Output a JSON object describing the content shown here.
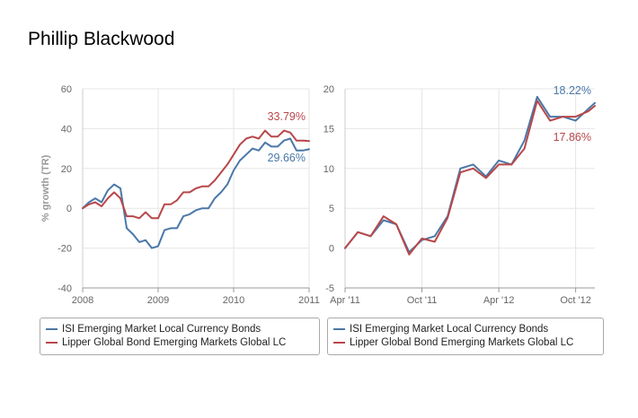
{
  "title": "Phillip Blackwood",
  "colors": {
    "blue": "#4a78a8",
    "red": "#b8474a",
    "grid": "#e6e6e6",
    "axis": "#999999"
  },
  "chart_data": [
    {
      "type": "line",
      "ylabel": "% growth (TR)",
      "x_ticks": [
        "2008",
        "2009",
        "2010",
        "2011"
      ],
      "y_ticks": [
        "60",
        "40",
        "20",
        "0",
        "-20",
        "-40"
      ],
      "x_range": [
        2008,
        2011
      ],
      "ylim": [
        -40,
        60
      ],
      "grid": true,
      "series": [
        {
          "name": "ISI Emerging Market Local Currency Bonds",
          "color": "#4a78a8",
          "end_label": "29.66%",
          "x": [
            2008.0,
            2008.083,
            2008.167,
            2008.25,
            2008.333,
            2008.417,
            2008.5,
            2008.583,
            2008.667,
            2008.75,
            2008.833,
            2008.917,
            2009.0,
            2009.083,
            2009.167,
            2009.25,
            2009.333,
            2009.417,
            2009.5,
            2009.583,
            2009.667,
            2009.75,
            2009.833,
            2009.917,
            2010.0,
            2010.083,
            2010.167,
            2010.25,
            2010.333,
            2010.417,
            2010.5,
            2010.583,
            2010.667,
            2010.75,
            2010.833,
            2010.917,
            2011.0
          ],
          "values": [
            0,
            3,
            5,
            3,
            9,
            12,
            10,
            -10,
            -13,
            -17,
            -16,
            -20,
            -19,
            -11,
            -10,
            -10,
            -4,
            -3,
            -1,
            0,
            0,
            5,
            8,
            12,
            19,
            24,
            27,
            30,
            29,
            33,
            31,
            31,
            34,
            35,
            29,
            29,
            29.66
          ]
        },
        {
          "name": "Lipper Global Bond Emerging Markets Global LC",
          "color": "#b8474a",
          "end_label": "33.79%",
          "x": [
            2008.0,
            2008.083,
            2008.167,
            2008.25,
            2008.333,
            2008.417,
            2008.5,
            2008.583,
            2008.667,
            2008.75,
            2008.833,
            2008.917,
            2009.0,
            2009.083,
            2009.167,
            2009.25,
            2009.333,
            2009.417,
            2009.5,
            2009.583,
            2009.667,
            2009.75,
            2009.833,
            2009.917,
            2010.0,
            2010.083,
            2010.167,
            2010.25,
            2010.333,
            2010.417,
            2010.5,
            2010.583,
            2010.667,
            2010.75,
            2010.833,
            2010.917,
            2011.0
          ],
          "values": [
            0,
            2,
            3,
            1,
            5,
            8,
            5,
            -4,
            -4,
            -5,
            -2,
            -5,
            -5,
            2,
            2,
            4,
            8,
            8,
            10,
            11,
            11,
            14,
            18,
            22,
            27,
            32,
            35,
            36,
            35,
            39,
            36,
            36,
            39,
            38,
            34,
            34,
            33.79
          ]
        }
      ]
    },
    {
      "type": "line",
      "ylabel": "",
      "x_ticks": [
        "Apr '11",
        "Oct '11",
        "Apr '12",
        "Oct '12"
      ],
      "x_range": [
        0,
        19.5
      ],
      "x_tick_months": [
        0,
        6,
        12,
        18
      ],
      "y_ticks": [
        "20",
        "15",
        "10",
        "5",
        "0",
        "-5"
      ],
      "ylim": [
        -5,
        20
      ],
      "grid": true,
      "series": [
        {
          "name": "ISI Emerging Market Local Currency Bonds",
          "color": "#4a78a8",
          "end_label": "18.22%",
          "x": [
            0,
            1,
            2,
            3,
            4,
            5,
            6,
            7,
            8,
            9,
            10,
            11,
            12,
            13,
            14,
            15,
            16,
            17,
            18,
            19,
            19.5
          ],
          "values": [
            0,
            2,
            1.5,
            3.5,
            3,
            -0.5,
            1,
            1.5,
            4,
            10,
            10.5,
            9,
            11,
            10.5,
            13.5,
            19,
            16.5,
            16.5,
            16,
            17.5,
            18.22
          ]
        },
        {
          "name": "Lipper Global Bond Emerging Markets Global LC",
          "color": "#b8474a",
          "end_label": "17.86%",
          "x": [
            0,
            1,
            2,
            3,
            4,
            5,
            6,
            7,
            8,
            9,
            10,
            11,
            12,
            13,
            14,
            15,
            16,
            17,
            18,
            19,
            19.5
          ],
          "values": [
            0,
            2,
            1.5,
            4,
            3,
            -0.8,
            1.2,
            0.8,
            3.8,
            9.5,
            10,
            8.8,
            10.5,
            10.5,
            12.5,
            18.5,
            16,
            16.5,
            16.5,
            17.2,
            17.86
          ]
        }
      ]
    }
  ]
}
